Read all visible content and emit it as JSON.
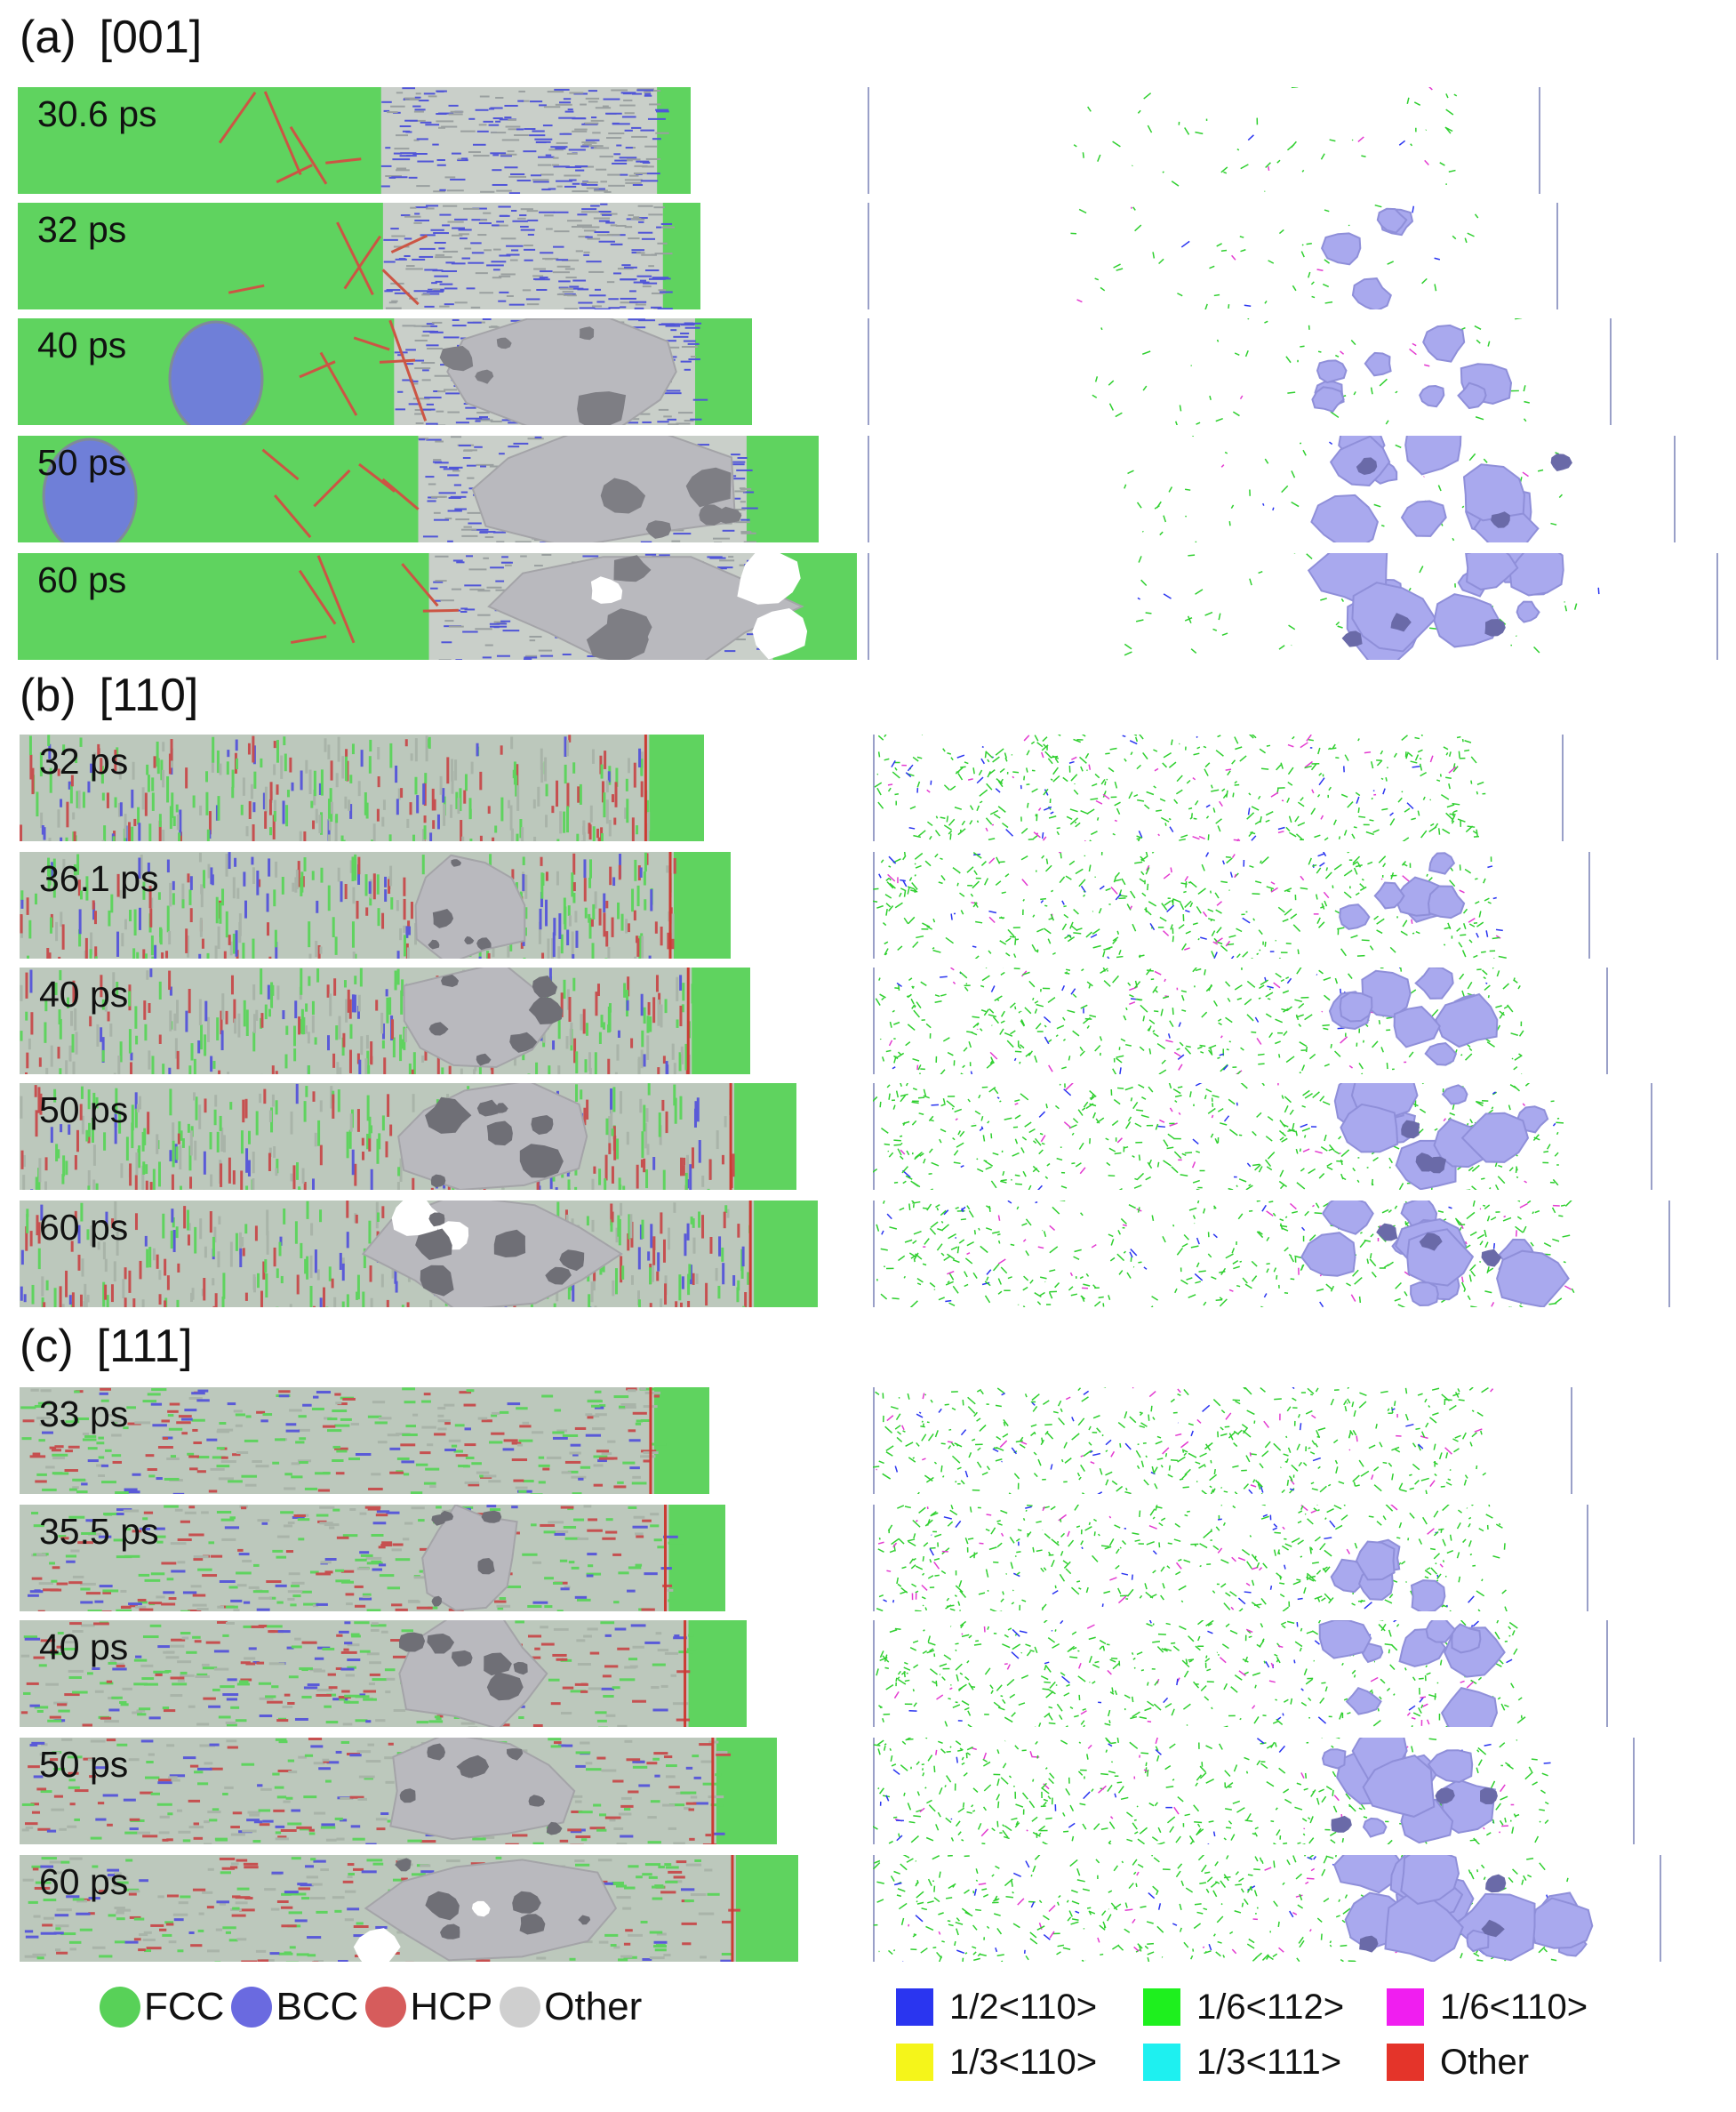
{
  "sections": [
    {
      "letter": "(a)",
      "direction": "[001]",
      "frames": [
        {
          "time": "30.6 ps",
          "void_level": 0.0,
          "bcc_clusters": 0
        },
        {
          "time": "32 ps",
          "void_level": 0.1,
          "bcc_clusters": 0
        },
        {
          "time": "40 ps",
          "void_level": 0.55,
          "bcc_clusters": 1
        },
        {
          "time": "50 ps",
          "void_level": 0.8,
          "bcc_clusters": 1
        },
        {
          "time": "60 ps",
          "void_level": 1.0,
          "bcc_clusters": 0
        }
      ]
    },
    {
      "letter": "(b)",
      "direction": "[110]",
      "frames": [
        {
          "time": "32 ps",
          "void_level": 0.0
        },
        {
          "time": "36.1 ps",
          "void_level": 0.35
        },
        {
          "time": "40 ps",
          "void_level": 0.55
        },
        {
          "time": "50 ps",
          "void_level": 0.8
        },
        {
          "time": "60 ps",
          "void_level": 1.0
        }
      ]
    },
    {
      "letter": "(c)",
      "direction": "[111]",
      "frames": [
        {
          "time": "33 ps",
          "void_level": 0.0
        },
        {
          "time": "35.5 ps",
          "void_level": 0.2
        },
        {
          "time": "40 ps",
          "void_level": 0.5
        },
        {
          "time": "50 ps",
          "void_level": 0.8
        },
        {
          "time": "60 ps",
          "void_level": 1.0
        }
      ]
    }
  ],
  "structure_legend": [
    {
      "label": "FCC",
      "color": "#58d158"
    },
    {
      "label": "BCC",
      "color": "#6a6ae0"
    },
    {
      "label": "HCP",
      "color": "#d65c5c"
    },
    {
      "label": "Other",
      "color": "#cfcfcf"
    }
  ],
  "dislocation_legend": [
    {
      "label": "1/2<110>",
      "color": "#2a35f0"
    },
    {
      "label": "1/6<112>",
      "color": "#1ef01e"
    },
    {
      "label": "1/6<110>",
      "color": "#f01ef0"
    },
    {
      "label": "1/3<110>",
      "color": "#f5f51a"
    },
    {
      "label": "1/3<111>",
      "color": "#1ef0f0"
    },
    {
      "label": "Other",
      "color": "#e4342a"
    }
  ],
  "colors": {
    "fcc": "#5fd35f",
    "void_fill": "#b9b9be",
    "void_hole": "#ffffff",
    "surface": "#a9a9ee",
    "disloc": "#2fcf2f"
  }
}
